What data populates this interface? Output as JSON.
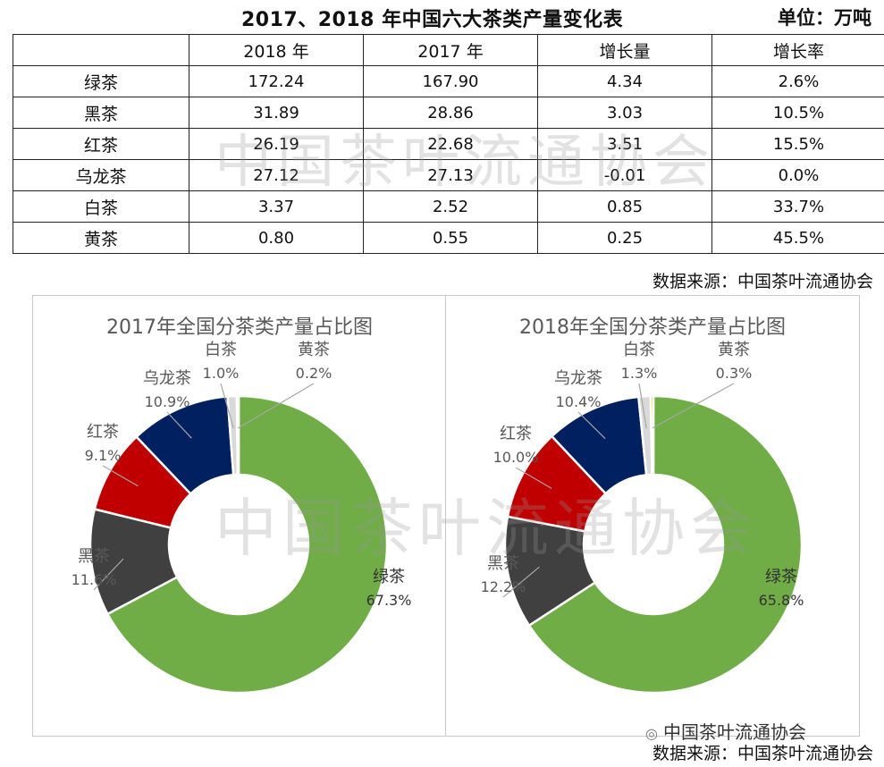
{
  "header": {
    "title": "2017、2018 年中国六大茶类产量变化表",
    "unit": "单位：万吨"
  },
  "table": {
    "columns": [
      "",
      "2018 年",
      "2017 年",
      "增长量",
      "增长率"
    ],
    "rows": [
      {
        "name": "绿茶",
        "y2018": "172.24",
        "y2017": "167.90",
        "growth": "4.34",
        "rate": "2.6%"
      },
      {
        "name": "黑茶",
        "y2018": "31.89",
        "y2017": "28.86",
        "growth": "3.03",
        "rate": "10.5%"
      },
      {
        "name": "红茶",
        "y2018": "26.19",
        "y2017": "22.68",
        "growth": "3.51",
        "rate": "15.5%"
      },
      {
        "name": "乌龙茶",
        "y2018": "27.12",
        "y2017": "27.13",
        "growth": "-0.01",
        "rate": "0.0%"
      },
      {
        "name": "白茶",
        "y2018": "3.37",
        "y2017": "2.52",
        "growth": "0.85",
        "rate": "33.7%"
      },
      {
        "name": "黄茶",
        "y2018": "0.80",
        "y2017": "0.55",
        "growth": "0.25",
        "rate": "45.5%"
      }
    ]
  },
  "source_text": "数据来源：中国茶叶流通协会",
  "watermark_text": "中国茶叶流通协会",
  "brand_text": "中国茶叶流通协会",
  "chart_data": [
    {
      "type": "pie",
      "title": "2017年全国分茶类产量占比图",
      "categories": [
        "绿茶",
        "黑茶",
        "红茶",
        "乌龙茶",
        "白茶",
        "黄茶"
      ],
      "values": [
        67.3,
        11.6,
        9.1,
        10.9,
        1.0,
        0.2
      ],
      "labels": [
        "67.3%",
        "11.6%",
        "9.1%",
        "10.9%",
        "1.0%",
        "0.2%"
      ],
      "colors": [
        "#70ad47",
        "#404040",
        "#c00000",
        "#002060",
        "#d9d9d9",
        "#ffc000"
      ]
    },
    {
      "type": "pie",
      "title": "2018年全国分茶类产量占比图",
      "categories": [
        "绿茶",
        "黑茶",
        "红茶",
        "乌龙茶",
        "白茶",
        "黄茶"
      ],
      "values": [
        65.8,
        12.2,
        10.0,
        10.4,
        1.3,
        0.3
      ],
      "labels": [
        "65.8%",
        "12.2%",
        "10.0%",
        "10.4%",
        "1.3%",
        "0.3%"
      ],
      "colors": [
        "#70ad47",
        "#404040",
        "#c00000",
        "#002060",
        "#d9d9d9",
        "#ffc000"
      ]
    }
  ]
}
